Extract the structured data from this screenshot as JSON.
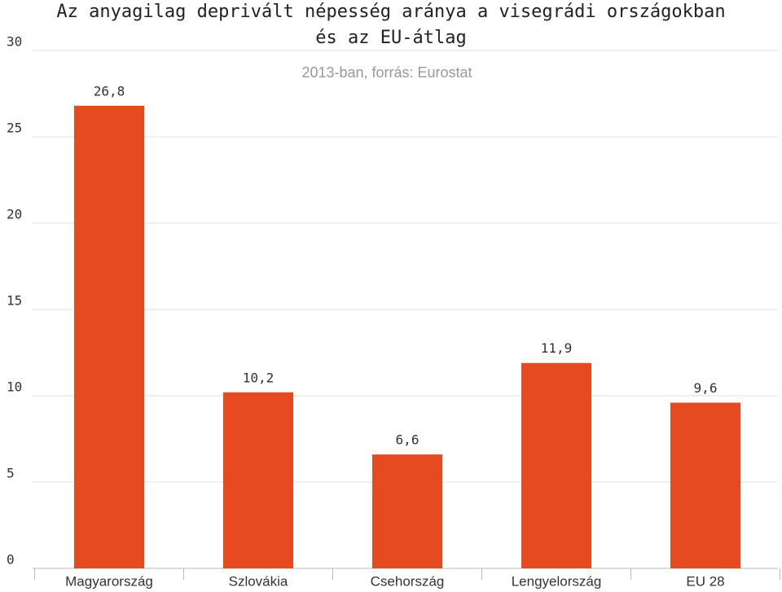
{
  "chart_data": {
    "type": "bar",
    "title": [
      "Az anyagilag deprivált népesség aránya a visegrádi országokban",
      "és az EU-átlag"
    ],
    "subtitle": "2013-ban, forrás: Eurostat",
    "categories": [
      "Magyarország",
      "Szlovákia",
      "Csehország",
      "Lengyelország",
      "EU 28"
    ],
    "values": [
      26.8,
      10.2,
      6.6,
      11.9,
      9.6
    ],
    "value_labels": [
      "26,8",
      "10,2",
      "6,6",
      "11,9",
      "9,6"
    ],
    "color": "#e64a21",
    "ylim": [
      0,
      30
    ],
    "yticks": [
      0,
      5,
      10,
      15,
      20,
      25,
      30
    ],
    "grid": true
  }
}
